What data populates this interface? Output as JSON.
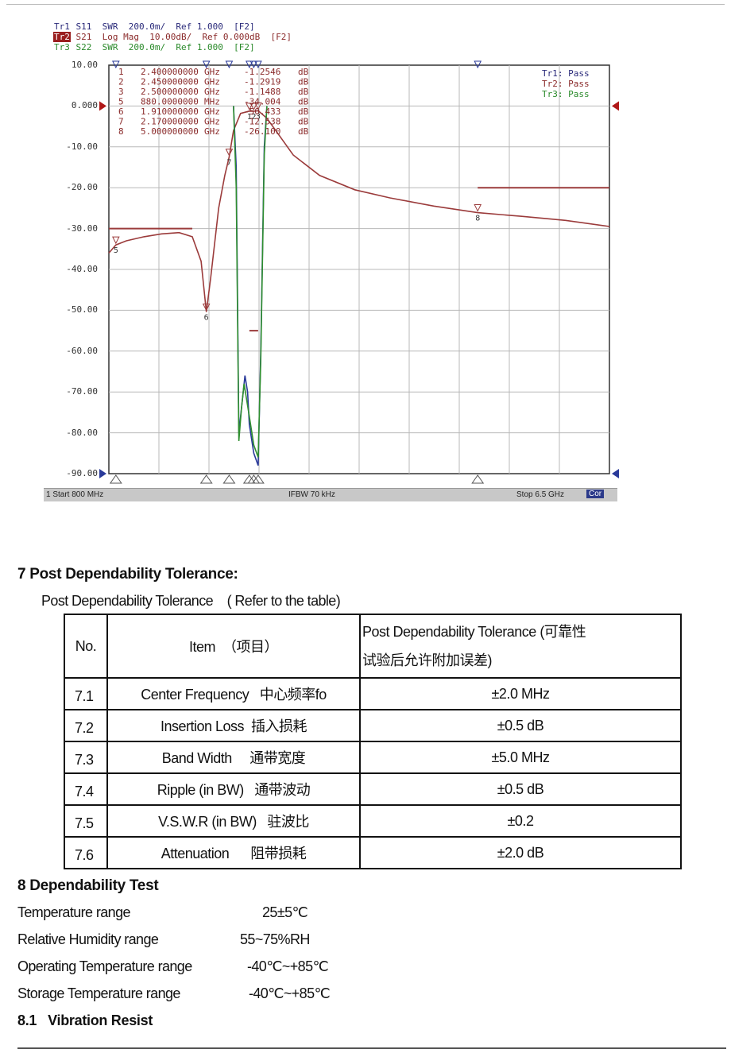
{
  "analyzer": {
    "traces": [
      {
        "tag": "Tr1",
        "text": " S11  SWR  200.0m/  Ref 1.000  [F2]"
      },
      {
        "tag": "Tr2",
        "text": " S21  Log Mag  10.00dB/  Ref 0.000dB  [F2]"
      },
      {
        "tag": "Tr3",
        "text": " S22  SWR  200.0m/  Ref 1.000  [F2]"
      }
    ],
    "y_tick_labels": [
      "10.00",
      "0.000",
      "-10.00",
      "-20.00",
      "-30.00",
      "-40.00",
      "-50.00",
      "-60.00",
      "-70.00",
      "-80.00",
      "-90.00"
    ],
    "markers": [
      {
        "num": "1",
        "freq": "2.400000000",
        "unit": "GHz",
        "value": "-1.2546",
        "vunit": "dB"
      },
      {
        "num": "2",
        "freq": "2.450000000",
        "unit": "GHz",
        "value": "-1.2919",
        "vunit": "dB"
      },
      {
        "num": "3",
        "freq": "2.500000000",
        "unit": "GHz",
        "value": "-1.1488",
        "vunit": "dB"
      },
      {
        "num": "5",
        "freq": "880.0000000",
        "unit": "MHz",
        "value": "-34.004",
        "vunit": "dB"
      },
      {
        "num": "6",
        "freq": "1.910000000",
        "unit": "GHz",
        "value": "-50.433",
        "vunit": "dB"
      },
      {
        "num": "7",
        "freq": "2.170000000",
        "unit": "GHz",
        "value": "-12.538",
        "vunit": "dB"
      },
      {
        "num": "8",
        "freq": "5.000000000",
        "unit": "GHz",
        "value": "-26.100",
        "vunit": "dB"
      }
    ],
    "pass_status": [
      {
        "label": "Tr1: Pass",
        "color": "#2a2a7a"
      },
      {
        "label": "Tr2: Pass",
        "color": "#8a2a2a"
      },
      {
        "label": "Tr3: Pass",
        "color": "#2a8a2a"
      }
    ],
    "status_bar": {
      "start": "1  Start 800 MHz",
      "ifbw": "IFBW 70 kHz",
      "stop": "Stop 6.5 GHz",
      "cor": "Cor"
    },
    "colors": {
      "s21": "#9b3b3b",
      "s11": "#2a3a9a",
      "s22": "#2f8f2f",
      "grid": "#b8b8b8",
      "ref_arrow": "#b01818",
      "bottom_arrow": "#2a3a9a"
    }
  },
  "chart_data": {
    "type": "line",
    "xlabel": "",
    "ylabel": "",
    "x_unit": "GHz",
    "xlim": [
      0.8,
      6.5
    ],
    "ylim": [
      -90,
      10
    ],
    "grid": true,
    "series": [
      {
        "name": "S21",
        "x": [
          0.8,
          0.88,
          1.0,
          1.2,
          1.4,
          1.6,
          1.75,
          1.85,
          1.91,
          1.96,
          2.05,
          2.12,
          2.17,
          2.22,
          2.3,
          2.4,
          2.45,
          2.5,
          2.6,
          2.7,
          2.9,
          3.2,
          3.6,
          4.0,
          4.5,
          5.0,
          5.5,
          6.0,
          6.5
        ],
        "y": [
          -36,
          -34,
          -33,
          -32,
          -31.3,
          -31,
          -32,
          -38,
          -50.4,
          -42,
          -25,
          -17,
          -12.5,
          -6,
          -1.8,
          -1.25,
          -1.29,
          -1.15,
          -3,
          -6,
          -12,
          -17,
          -20.5,
          -22.5,
          -24.5,
          -26.1,
          -27,
          -28,
          -29.5
        ]
      },
      {
        "name": "S11",
        "x": [
          2.22,
          2.25,
          2.28,
          2.32,
          2.35,
          2.38,
          2.4,
          2.45,
          2.5,
          2.53,
          2.57,
          2.6
        ],
        "y": [
          0,
          -15,
          -80,
          -72,
          -66,
          -70,
          -78,
          -85,
          -88,
          -60,
          -10,
          0
        ]
      },
      {
        "name": "S22",
        "x": [
          2.22,
          2.25,
          2.28,
          2.31,
          2.34,
          2.37,
          2.4,
          2.45,
          2.5,
          2.53,
          2.57,
          2.6
        ],
        "y": [
          0,
          -20,
          -82,
          -74,
          -68,
          -72,
          -76,
          -83,
          -86,
          -62,
          -12,
          0
        ]
      }
    ],
    "limit_lines": [
      {
        "x": [
          0.8,
          1.75
        ],
        "y": [
          -30,
          -30
        ]
      },
      {
        "x": [
          5.0,
          6.5
        ],
        "y": [
          -20,
          -20
        ]
      },
      {
        "x": [
          2.4,
          2.5
        ],
        "y": [
          -55,
          -55
        ]
      }
    ],
    "marker_points": [
      {
        "num": "1",
        "x": 2.4,
        "y": -1.25
      },
      {
        "num": "2",
        "x": 2.45,
        "y": -1.29
      },
      {
        "num": "3",
        "x": 2.5,
        "y": -1.15
      },
      {
        "num": "5",
        "x": 0.88,
        "y": -34.0
      },
      {
        "num": "6",
        "x": 1.91,
        "y": -50.4
      },
      {
        "num": "7",
        "x": 2.17,
        "y": -12.5
      },
      {
        "num": "8",
        "x": 5.0,
        "y": -26.1
      }
    ],
    "top_markers_x": [
      0.88,
      1.91,
      2.17,
      2.4,
      2.45,
      2.5,
      5.0
    ],
    "bottom_markers_x": [
      0.88,
      1.91,
      2.17,
      2.4,
      2.45,
      2.5,
      5.0
    ]
  },
  "section7": {
    "title": "7 Post Dependability Tolerance:",
    "intro": "Post Dependability Tolerance    ( Refer to the table)",
    "table": {
      "headers": {
        "no": "No.",
        "item": "Item  （项目）",
        "value_line1": "Post Dependability Tolerance (可靠性",
        "value_line2": "试验后允许附加误差)"
      },
      "rows": [
        {
          "no": "7.1",
          "item": "Center Frequency   中心频率fo",
          "value": "±2.0 MHz"
        },
        {
          "no": "7.2",
          "item": "Insertion Loss  插入损耗",
          "value": "±0.5 dB"
        },
        {
          "no": "7.3",
          "item": "Band Width     通带宽度",
          "value": "±5.0 MHz"
        },
        {
          "no": "7.4",
          "item": "Ripple (in BW)   通带波动",
          "value": "±0.5 dB"
        },
        {
          "no": "7.5",
          "item": "V.S.W.R (in BW)   驻波比",
          "value": "±0.2"
        },
        {
          "no": "7.6",
          "item": "Attenuation      阻带损耗",
          "value": "±2.0 dB"
        }
      ]
    }
  },
  "section8": {
    "title": "8 Dependability Test",
    "specs": [
      {
        "label": "Temperature range",
        "value": "25±5℃"
      },
      {
        "label": "Relative Humidity range",
        "value": "55~75%RH"
      },
      {
        "label": "Operating Temperature range",
        "value": "-40℃~+85℃"
      },
      {
        "label": "Storage Temperature range",
        "value": "-40℃~+85℃"
      }
    ],
    "subsection": {
      "num": "8.1",
      "title": "Vibration Resist"
    }
  }
}
